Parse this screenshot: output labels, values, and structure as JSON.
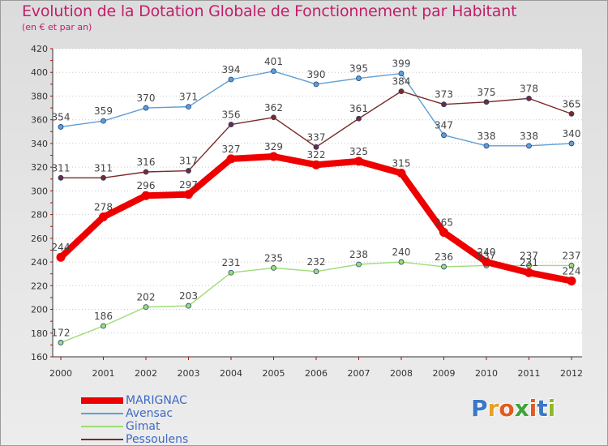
{
  "title": "Evolution de la Dotation Globale de Fonctionnement par Habitant",
  "subtitle": "(en € et par an)",
  "logo": {
    "text": "Proxiti",
    "letters": [
      "P",
      "r",
      "o",
      "x",
      "i",
      "t",
      "i"
    ],
    "letter_colors": [
      "#3b78c6",
      "#e8a025",
      "#e25b20",
      "#3fa33a",
      "#e25b20",
      "#3b78c6",
      "#8fb82b"
    ]
  },
  "chart_data": {
    "type": "line",
    "title": "Evolution de la Dotation Globale de Fonctionnement par Habitant",
    "subtitle": "(en € et par an)",
    "xlabel": "",
    "ylabel": "",
    "x": [
      "2000",
      "2001",
      "2002",
      "2003",
      "2004",
      "2005",
      "2006",
      "2007",
      "2008",
      "2009",
      "2010",
      "2011",
      "2012"
    ],
    "ylim": [
      160,
      420
    ],
    "yticks": [
      160,
      180,
      200,
      220,
      240,
      260,
      280,
      300,
      320,
      340,
      360,
      380,
      400,
      420
    ],
    "grid": "horizontal dotted",
    "legend_position": "bottom-left",
    "series": [
      {
        "name": "MARIGNAC",
        "color": "#ee0000",
        "bold": true,
        "values": [
          244,
          278,
          296,
          297,
          327,
          329,
          322,
          325,
          315,
          265,
          240,
          231,
          224
        ]
      },
      {
        "name": "Avensac",
        "color": "#5f9fd6",
        "values": [
          354,
          359,
          370,
          371,
          394,
          401,
          390,
          395,
          399,
          347,
          338,
          338,
          340
        ]
      },
      {
        "name": "Gimat",
        "color": "#9fdc77",
        "values": [
          172,
          186,
          202,
          203,
          231,
          235,
          232,
          238,
          240,
          236,
          237,
          237,
          237
        ]
      },
      {
        "name": "Pessoulens",
        "color": "#7a2a2a",
        "values": [
          311,
          311,
          316,
          317,
          356,
          362,
          337,
          361,
          384,
          373,
          375,
          378,
          365
        ]
      }
    ]
  }
}
